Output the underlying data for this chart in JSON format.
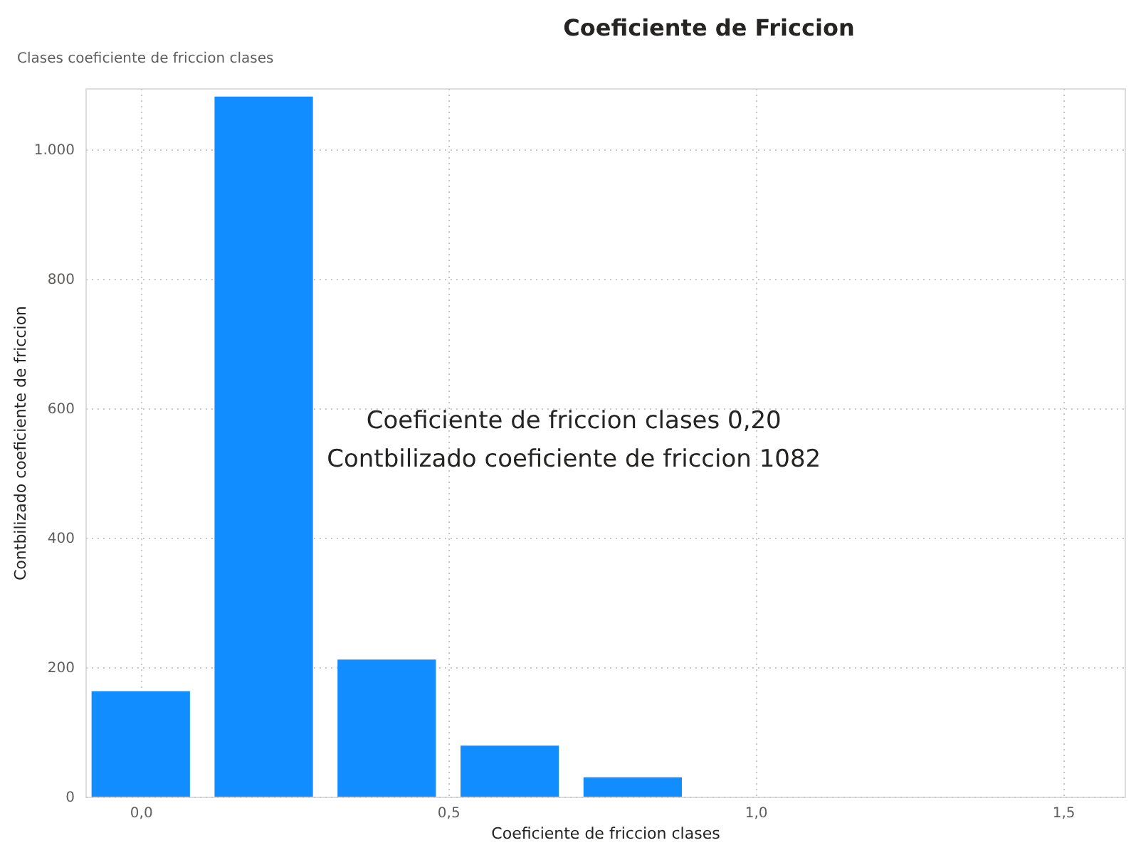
{
  "chart_data": {
    "type": "bar",
    "title": "Coeficiente de Friccion",
    "subtitle": "Clases coeficiente de friccion clases",
    "xlabel": "Coeficiente de friccion clases",
    "ylabel": "Contbilizado coeficiente de friccion",
    "x": [
      0.0,
      0.2,
      0.4,
      0.6,
      0.8
    ],
    "values": [
      163,
      1082,
      212,
      79,
      30
    ],
    "color": "#118dff",
    "xlim": [
      -0.09,
      1.6
    ],
    "xticks": [
      {
        "value": 0,
        "label": "0,0"
      },
      {
        "value": 0.5,
        "label": "0,5"
      },
      {
        "value": 1,
        "label": "1,0"
      },
      {
        "value": 1.5,
        "label": "1,5"
      }
    ],
    "ylim": [
      0,
      1095
    ],
    "yticks": [
      0,
      200,
      400,
      600,
      800,
      {
        "value": 1000,
        "label": "1.000"
      }
    ],
    "grid": true,
    "annotations": [
      "Coeficiente de friccion clases   0,20",
      "Contbilizado coeficiente de friccion   1082"
    ]
  }
}
